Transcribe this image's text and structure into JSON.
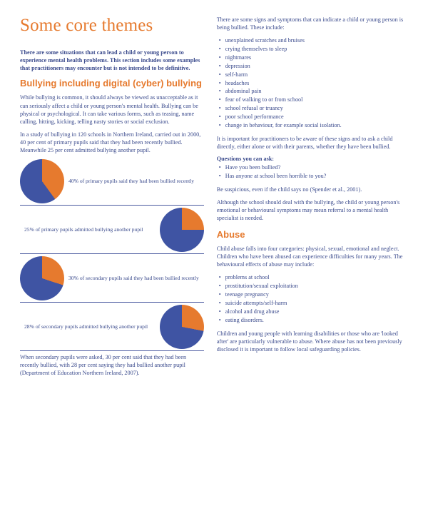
{
  "page": {
    "title": "Some core themes",
    "intro": "There are some situations that can lead a child or young person to experience mental health problems. This section includes some examples that practitioners may encounter but is not intended to be definitive."
  },
  "bullying": {
    "heading": "Bullying including digital (cyber) bullying",
    "p1": "While bullying is common, it should always be viewed as unacceptable as it can seriously affect a child or young person's mental health. Bullying can be physical or psychological. It can take various forms, such as teasing, name calling, hitting, kicking, telling nasty stories or social exclusion.",
    "p2": "In a study of bullying in 120 schools in Northern Ireland, carried out in 2000, 40 per cent of primary pupils said that they had been recently bullied. Meanwhile 25 per cent admitted bullying another pupil.",
    "closing": "When secondary pupils were asked, 30 per cent said that they had been recently bullied, with 28 per cent saying they had bullied another pupil (Department of Education Northern Ireland, 2007)."
  },
  "charts": [
    {
      "type": "pie",
      "pct": 40,
      "slice_color": "#e67a2e",
      "base_color": "#3f54a3",
      "caption": "40% of primary pupils said they had been bullied recently",
      "align": "right"
    },
    {
      "type": "pie",
      "pct": 25,
      "slice_color": "#e67a2e",
      "base_color": "#3f54a3",
      "caption": "25% of primary pupils admitted bullying another pupil",
      "align": "left"
    },
    {
      "type": "pie",
      "pct": 30,
      "slice_color": "#e67a2e",
      "base_color": "#3f54a3",
      "caption": "30% of secondary pupils said they had been bullied recently",
      "align": "right"
    },
    {
      "type": "pie",
      "pct": 28,
      "slice_color": "#e67a2e",
      "base_color": "#3f54a3",
      "caption": "28% of secondary pupils admitted bullying another pupil",
      "align": "left"
    }
  ],
  "signs": {
    "intro": "There are some signs and symptoms that can indicate a child or young person is being bullied. These include:",
    "items": [
      "unexplained scratches and bruises",
      "crying themselves to sleep",
      "nightmares",
      "depression",
      "self-harm",
      "headaches",
      "abdominal pain",
      "fear of walking to or from school",
      "school refusal or truancy",
      "poor school performance",
      "change in behaviour, for example social isolation."
    ],
    "after": "It is important for practitioners to be aware of these signs and to ask a child directly, either alone or with their parents, whether they have been bullied.",
    "q_label": "Questions you can ask:",
    "questions": [
      "Have you been bullied?",
      "Has anyone at school been horrible to you?"
    ],
    "suspicious": "Be suspicious, even if the child says no (Spender et al., 2001).",
    "referral": "Although the school should deal with the bullying, the child or young person's emotional or behavioural symptoms may mean referral to a mental health specialist is needed."
  },
  "abuse": {
    "heading": "Abuse",
    "intro": "Child abuse falls into four categories: physical, sexual, emotional and neglect. Children who have been abused can experience difficulties for many years. The behavioural effects of abuse may include:",
    "items": [
      "problems at school",
      "prostitution/sexual exploitation",
      "teenage pregnancy",
      "suicide attempts/self-harm",
      "alcohol and drug abuse",
      "eating disorders."
    ],
    "closing": "Children and young people with learning disabilities or those who are 'looked after' are particularly vulnerable to abuse. Where abuse has not been previously disclosed it is important to follow local safeguarding policies."
  },
  "colors": {
    "heading": "#e67a2e",
    "body": "#3a4a8c",
    "pie_base": "#3f54a3",
    "pie_slice": "#e67a2e",
    "rule": "#4a5aa0"
  }
}
